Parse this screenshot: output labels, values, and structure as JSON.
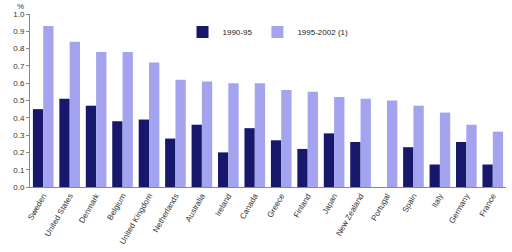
{
  "chart_data": {
    "type": "bar",
    "y_label": "%",
    "categories": [
      "Sweden",
      "United States",
      "Denmark",
      "Belgium",
      "United Kingdom",
      "Netherlands",
      "Australia",
      "Ireland",
      "Canada",
      "Greece",
      "Finland",
      "Japan",
      "New Zealand",
      "Portugal",
      "Spain",
      "Italy",
      "Germany",
      "France"
    ],
    "series": [
      {
        "name": "1990-95",
        "color": "#17176b",
        "values": [
          0.45,
          0.51,
          0.47,
          0.38,
          0.39,
          0.28,
          0.36,
          0.2,
          0.34,
          0.27,
          0.22,
          0.31,
          0.26,
          null,
          0.23,
          0.13,
          0.26,
          0.13
        ]
      },
      {
        "name": "1995-2002 (1)",
        "color": "#a3a3f0",
        "values": [
          0.93,
          0.84,
          0.78,
          0.78,
          0.72,
          0.62,
          0.61,
          0.6,
          0.6,
          0.56,
          0.55,
          0.52,
          0.51,
          0.5,
          0.47,
          0.43,
          0.36,
          0.32
        ]
      }
    ],
    "ylim": [
      0,
      1
    ],
    "yticks": [
      {
        "value": 0,
        "label": "0.0"
      },
      0.1,
      0.2,
      0.3,
      0.4,
      0.5,
      0.6,
      0.7,
      0.8,
      0.9,
      {
        "value": 1,
        "label": "1.0"
      }
    ],
    "grid": false,
    "legend": "top"
  }
}
